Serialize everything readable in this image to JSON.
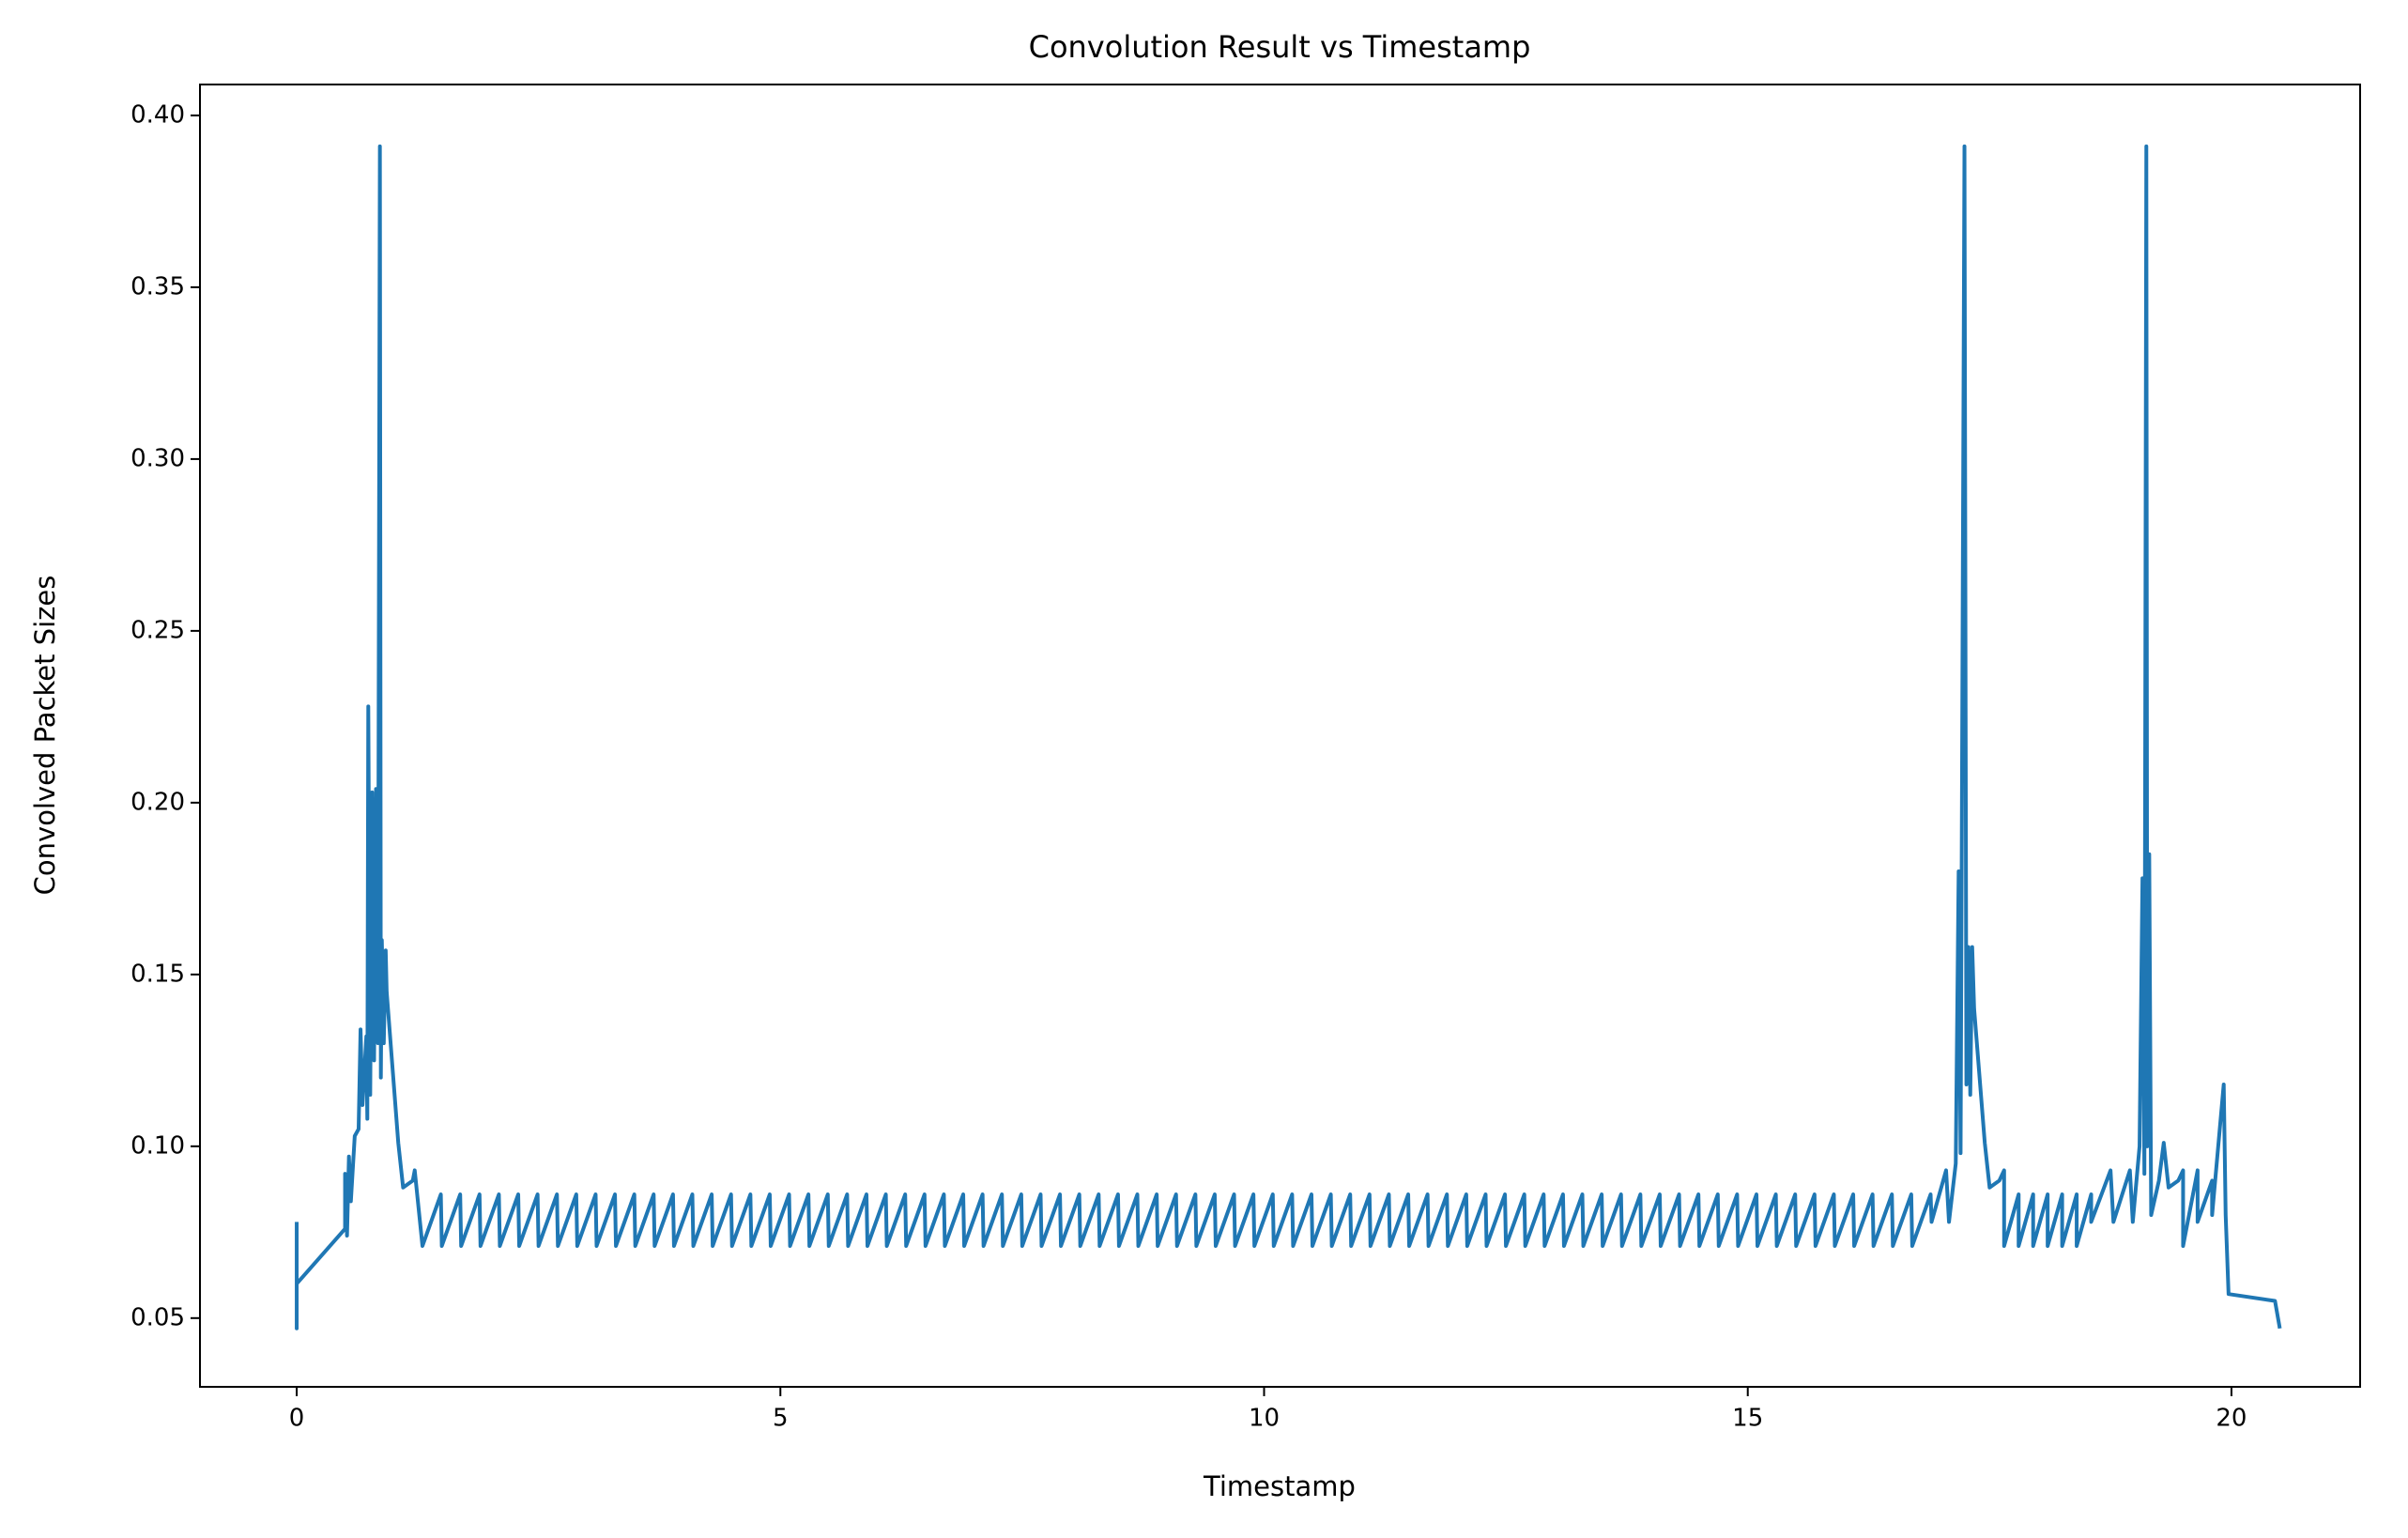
{
  "chart_data": {
    "type": "line",
    "title": "Convolution Result vs Timestamp",
    "x_label": "Timestamp",
    "y_label": "Convolved Packet Sizes",
    "xlim": [
      -1.0,
      21.33
    ],
    "ylim": [
      0.03,
      0.409
    ],
    "xticks": [
      0,
      5,
      10,
      15,
      20
    ],
    "yticks": [
      0.05,
      {
        "value": 0.1,
        "label": "0.10"
      },
      0.15,
      {
        "value": 0.2,
        "label": "0.20"
      },
      0.25,
      {
        "value": 0.3,
        "label": "0.30"
      },
      0.35,
      {
        "value": 0.4,
        "label": "0.40"
      }
    ],
    "series": [
      {
        "color": "#1f77b4",
        "x": [
          0,
          0,
          0,
          0.5,
          0.5,
          0.52,
          0.54,
          0.56,
          0.6,
          0.64,
          0.66,
          0.68,
          0.72,
          0.73,
          0.74,
          0.76,
          0.78,
          0.8,
          0.82,
          0.84,
          0.86,
          0.87,
          0.88,
          0.9,
          0.92,
          0.93,
          1.05,
          1.1,
          1.2,
          1.22,
          1.3,
          1.49,
          1.5,
          1.69,
          1.7,
          1.89,
          1.9,
          2.09,
          2.1,
          2.29,
          2.3,
          2.49,
          2.5,
          2.69,
          2.7,
          2.89,
          2.9,
          3.09,
          3.1,
          3.29,
          3.3,
          3.49,
          3.5,
          3.69,
          3.7,
          3.89,
          3.9,
          4.09,
          4.1,
          4.29,
          4.3,
          4.49,
          4.5,
          4.69,
          4.7,
          4.89,
          4.9,
          5.09,
          5.1,
          5.29,
          5.3,
          5.49,
          5.5,
          5.69,
          5.7,
          5.89,
          5.9,
          6.09,
          6.1,
          6.29,
          6.3,
          6.49,
          6.5,
          6.69,
          6.7,
          6.89,
          6.9,
          7.09,
          7.1,
          7.29,
          7.3,
          7.49,
          7.5,
          7.69,
          7.7,
          7.89,
          7.9,
          8.09,
          8.1,
          8.29,
          8.3,
          8.49,
          8.5,
          8.69,
          8.7,
          8.89,
          8.9,
          9.09,
          9.1,
          9.29,
          9.3,
          9.49,
          9.5,
          9.69,
          9.7,
          9.89,
          9.9,
          10.09,
          10.1,
          10.29,
          10.3,
          10.49,
          10.5,
          10.69,
          10.7,
          10.89,
          10.9,
          11.09,
          11.1,
          11.29,
          11.3,
          11.49,
          11.5,
          11.69,
          11.7,
          11.89,
          11.9,
          12.09,
          12.1,
          12.29,
          12.3,
          12.49,
          12.5,
          12.69,
          12.7,
          12.89,
          12.9,
          13.09,
          13.1,
          13.29,
          13.3,
          13.49,
          13.5,
          13.69,
          13.7,
          13.89,
          13.9,
          14.09,
          14.1,
          14.29,
          14.3,
          14.49,
          14.5,
          14.69,
          14.7,
          14.89,
          14.9,
          15.09,
          15.1,
          15.29,
          15.3,
          15.49,
          15.5,
          15.69,
          15.7,
          15.89,
          15.9,
          16.09,
          16.1,
          16.29,
          16.3,
          16.49,
          16.5,
          16.69,
          16.7,
          16.89,
          16.9,
          17.05,
          17.08,
          17.15,
          17.18,
          17.2,
          17.24,
          17.26,
          17.28,
          17.3,
          17.32,
          17.34,
          17.45,
          17.5,
          17.6,
          17.65,
          17.65,
          17.8,
          17.8,
          17.95,
          17.95,
          18.1,
          18.1,
          18.25,
          18.25,
          18.4,
          18.4,
          18.55,
          18.55,
          18.75,
          18.78,
          18.95,
          18.98,
          19.05,
          19.08,
          19.1,
          19.12,
          19.13,
          19.15,
          19.17,
          19.25,
          19.3,
          19.35,
          19.45,
          19.5,
          19.5,
          19.65,
          19.65,
          19.8,
          19.8,
          19.92,
          19.94,
          19.97,
          20.45,
          20.5
        ],
        "values": [
          0.078,
          0.047,
          0.06,
          0.076,
          0.092,
          0.074,
          0.097,
          0.084,
          0.103,
          0.105,
          0.134,
          0.112,
          0.132,
          0.108,
          0.228,
          0.115,
          0.203,
          0.125,
          0.204,
          0.13,
          0.391,
          0.12,
          0.16,
          0.13,
          0.157,
          0.145,
          0.101,
          0.088,
          0.09,
          0.093,
          0.071,
          0.086,
          0.071,
          0.086,
          0.071,
          0.086,
          0.071,
          0.086,
          0.071,
          0.086,
          0.071,
          0.086,
          0.071,
          0.086,
          0.071,
          0.086,
          0.071,
          0.086,
          0.071,
          0.086,
          0.071,
          0.086,
          0.071,
          0.086,
          0.071,
          0.086,
          0.071,
          0.086,
          0.071,
          0.086,
          0.071,
          0.086,
          0.071,
          0.086,
          0.071,
          0.086,
          0.071,
          0.086,
          0.071,
          0.086,
          0.071,
          0.086,
          0.071,
          0.086,
          0.071,
          0.086,
          0.071,
          0.086,
          0.071,
          0.086,
          0.071,
          0.086,
          0.071,
          0.086,
          0.071,
          0.086,
          0.071,
          0.086,
          0.071,
          0.086,
          0.071,
          0.086,
          0.071,
          0.086,
          0.071,
          0.086,
          0.071,
          0.086,
          0.071,
          0.086,
          0.071,
          0.086,
          0.071,
          0.086,
          0.071,
          0.086,
          0.071,
          0.086,
          0.071,
          0.086,
          0.071,
          0.086,
          0.071,
          0.086,
          0.071,
          0.086,
          0.071,
          0.086,
          0.071,
          0.086,
          0.071,
          0.086,
          0.071,
          0.086,
          0.071,
          0.086,
          0.071,
          0.086,
          0.071,
          0.086,
          0.071,
          0.086,
          0.071,
          0.086,
          0.071,
          0.086,
          0.071,
          0.086,
          0.071,
          0.086,
          0.071,
          0.086,
          0.071,
          0.086,
          0.071,
          0.086,
          0.071,
          0.086,
          0.071,
          0.086,
          0.071,
          0.086,
          0.071,
          0.086,
          0.071,
          0.086,
          0.071,
          0.086,
          0.071,
          0.086,
          0.071,
          0.086,
          0.071,
          0.086,
          0.071,
          0.086,
          0.071,
          0.086,
          0.071,
          0.086,
          0.071,
          0.086,
          0.071,
          0.086,
          0.071,
          0.086,
          0.071,
          0.086,
          0.071,
          0.086,
          0.071,
          0.086,
          0.071,
          0.086,
          0.071,
          0.086,
          0.078,
          0.093,
          0.078,
          0.095,
          0.18,
          0.098,
          0.391,
          0.118,
          0.158,
          0.115,
          0.158,
          0.14,
          0.101,
          0.088,
          0.09,
          0.093,
          0.071,
          0.086,
          0.071,
          0.086,
          0.071,
          0.086,
          0.071,
          0.086,
          0.071,
          0.086,
          0.071,
          0.086,
          0.078,
          0.093,
          0.078,
          0.093,
          0.078,
          0.1,
          0.178,
          0.092,
          0.391,
          0.1,
          0.185,
          0.08,
          0.09,
          0.101,
          0.088,
          0.09,
          0.093,
          0.071,
          0.093,
          0.078,
          0.09,
          0.08,
          0.118,
          0.08,
          0.057,
          0.055,
          0.047
        ]
      }
    ]
  }
}
